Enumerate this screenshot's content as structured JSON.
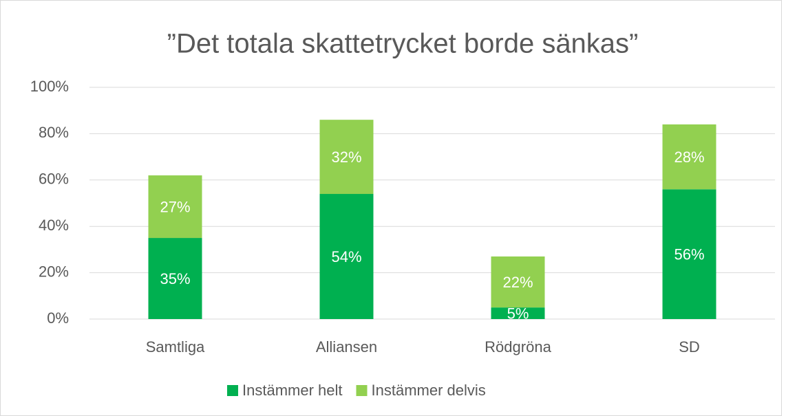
{
  "chart_data": {
    "type": "stacked-bar",
    "title": "”Det totala skattetrycket borde sänkas”",
    "categories": [
      "Samtliga",
      "Alliansen",
      "Rödgröna",
      "SD"
    ],
    "series": [
      {
        "name": "Instämmer helt",
        "color": "#00b050",
        "values": [
          35,
          54,
          5,
          56
        ],
        "value_labels": [
          "35%",
          "54%",
          "5%",
          "56%"
        ]
      },
      {
        "name": "Instämmer delvis",
        "color": "#92d050",
        "values": [
          27,
          32,
          22,
          28
        ],
        "value_labels": [
          "27%",
          "32%",
          "22%",
          "28%"
        ]
      }
    ],
    "ylim": [
      0,
      100
    ],
    "yticks": [
      {
        "value": 0,
        "label": "0%"
      },
      {
        "value": 20,
        "label": "20%"
      },
      {
        "value": 40,
        "label": "40%"
      },
      {
        "value": 60,
        "label": "60%"
      },
      {
        "value": 80,
        "label": "80%"
      },
      {
        "value": 100,
        "label": "100%"
      }
    ],
    "grid": true,
    "legend": "bottom"
  }
}
